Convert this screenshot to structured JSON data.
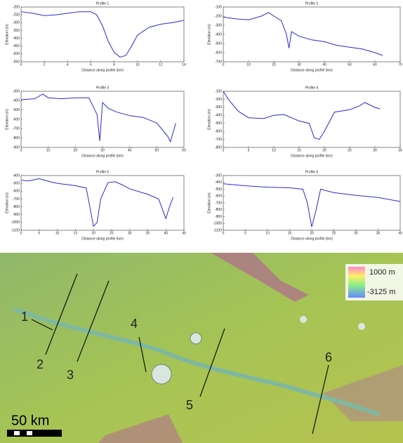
{
  "chart_data": [
    {
      "type": "line",
      "title": "Profile 1",
      "x_label": "Distance along profile (km)",
      "y_label": "Elevation (m)",
      "color": "#2a2ad8",
      "x": [
        0,
        1,
        2,
        3,
        4,
        5,
        6,
        6.5,
        7,
        7.5,
        8,
        8.5,
        9,
        9.5,
        10,
        11,
        12,
        13,
        14
      ],
      "values": [
        -230,
        -240,
        -255,
        -250,
        -240,
        -230,
        -230,
        -250,
        -320,
        -420,
        -490,
        -520,
        -510,
        -450,
        -380,
        -330,
        -310,
        -300,
        -285
      ],
      "xlim": [
        0,
        14
      ],
      "xticks": [
        0,
        2,
        4,
        6,
        8,
        10,
        12,
        14
      ],
      "ylim": [
        -550,
        -200
      ],
      "yticks": [
        -200,
        -250,
        -300,
        -350,
        -400,
        -450,
        -500,
        -550
      ]
    },
    {
      "type": "line",
      "title": "Profile 2",
      "x_label": "Distance along profile (km)",
      "y_label": "Elevation (m)",
      "color": "#2a2ad8",
      "x": [
        0,
        5,
        10,
        15,
        18,
        20,
        23,
        25,
        26,
        27,
        30,
        35,
        40,
        45,
        50,
        55,
        60,
        63
      ],
      "values": [
        -210,
        -230,
        -240,
        -200,
        -160,
        -200,
        -250,
        -400,
        -550,
        -370,
        -420,
        -460,
        -480,
        -520,
        -540,
        -560,
        -600,
        -630
      ],
      "xlim": [
        0,
        70
      ],
      "xticks": [
        0,
        10,
        20,
        30,
        40,
        50,
        60,
        70
      ],
      "ylim": [
        -700,
        -100
      ],
      "yticks": [
        -100,
        -200,
        -300,
        -400,
        -500,
        -600,
        -700
      ]
    },
    {
      "type": "line",
      "title": "Profile 3",
      "x_label": "Distance along profile (km)",
      "y_label": "Elevation (m)",
      "color": "#2a2ad8",
      "x": [
        0,
        5,
        8,
        10,
        15,
        20,
        25,
        28,
        29,
        30,
        32,
        35,
        40,
        45,
        50,
        54,
        55,
        57
      ],
      "values": [
        -390,
        -380,
        -330,
        -370,
        -380,
        -370,
        -370,
        -550,
        -830,
        -420,
        -480,
        -520,
        -560,
        -580,
        -640,
        -780,
        -840,
        -640
      ],
      "xlim": [
        0,
        60
      ],
      "xticks": [
        0,
        10,
        20,
        30,
        40,
        50,
        60
      ],
      "ylim": [
        -900,
        -300
      ],
      "yticks": [
        -300,
        -400,
        -500,
        -600,
        -700,
        -800,
        -900
      ]
    },
    {
      "type": "line",
      "title": "Profile 4",
      "x_label": "Distance along profile (km)",
      "y_label": "Elevation (m)",
      "color": "#2a2ad8",
      "x": [
        0,
        1,
        3,
        5,
        8,
        10,
        12,
        15,
        17,
        18,
        19,
        20,
        22,
        25,
        27,
        28,
        30,
        31
      ],
      "values": [
        -100,
        -200,
        -350,
        -430,
        -440,
        -400,
        -390,
        -470,
        -500,
        -680,
        -700,
        -600,
        -360,
        -330,
        -280,
        -240,
        -300,
        -320
      ],
      "xlim": [
        0,
        35
      ],
      "xticks": [
        0,
        5,
        10,
        15,
        20,
        25,
        30,
        35
      ],
      "ylim": [
        -800,
        -100
      ],
      "yticks": [
        -100,
        -200,
        -300,
        -400,
        -500,
        -600,
        -700,
        -800
      ]
    },
    {
      "type": "line",
      "title": "Profile 5",
      "x_label": "Distance along profile (km)",
      "y_label": "Elevation (m)",
      "color": "#2a2ad8",
      "x": [
        0,
        2,
        5,
        8,
        10,
        15,
        18,
        19,
        20,
        21,
        22,
        24,
        26,
        28,
        30,
        35,
        38,
        40,
        41,
        42
      ],
      "values": [
        -460,
        -470,
        -440,
        -480,
        -500,
        -530,
        -560,
        -800,
        -1050,
        -1000,
        -700,
        -490,
        -480,
        -520,
        -570,
        -640,
        -700,
        -950,
        -800,
        -680
      ],
      "xlim": [
        0,
        45
      ],
      "xticks": [
        0,
        5,
        10,
        15,
        20,
        25,
        30,
        35,
        40,
        45
      ],
      "ylim": [
        -1100,
        -400
      ],
      "yticks": [
        -400,
        -500,
        -600,
        -700,
        -800,
        -900,
        -1000,
        -1100
      ]
    },
    {
      "type": "line",
      "title": "Profile 6",
      "x_label": "Distance along profile (km)",
      "y_label": "Elevation (m)",
      "color": "#2a2ad8",
      "x": [
        0,
        5,
        10,
        15,
        18,
        19,
        20,
        21,
        22,
        25,
        30,
        35,
        40
      ],
      "values": [
        -420,
        -450,
        -470,
        -480,
        -500,
        -700,
        -1050,
        -800,
        -500,
        -550,
        -590,
        -620,
        -680
      ],
      "xlim": [
        0,
        40
      ],
      "xticks": [
        0,
        5,
        10,
        15,
        20,
        25,
        30,
        35,
        40
      ],
      "ylim": [
        -1100,
        -300
      ],
      "yticks": [
        -300,
        -400,
        -500,
        -600,
        -700,
        -800,
        -900,
        -1000,
        -1100
      ]
    }
  ],
  "map": {
    "labels": [
      "1",
      "2",
      "3",
      "4",
      "5",
      "6"
    ],
    "legend_top": "1000 m",
    "legend_bottom": "-3125 m",
    "scale": "50 km"
  }
}
